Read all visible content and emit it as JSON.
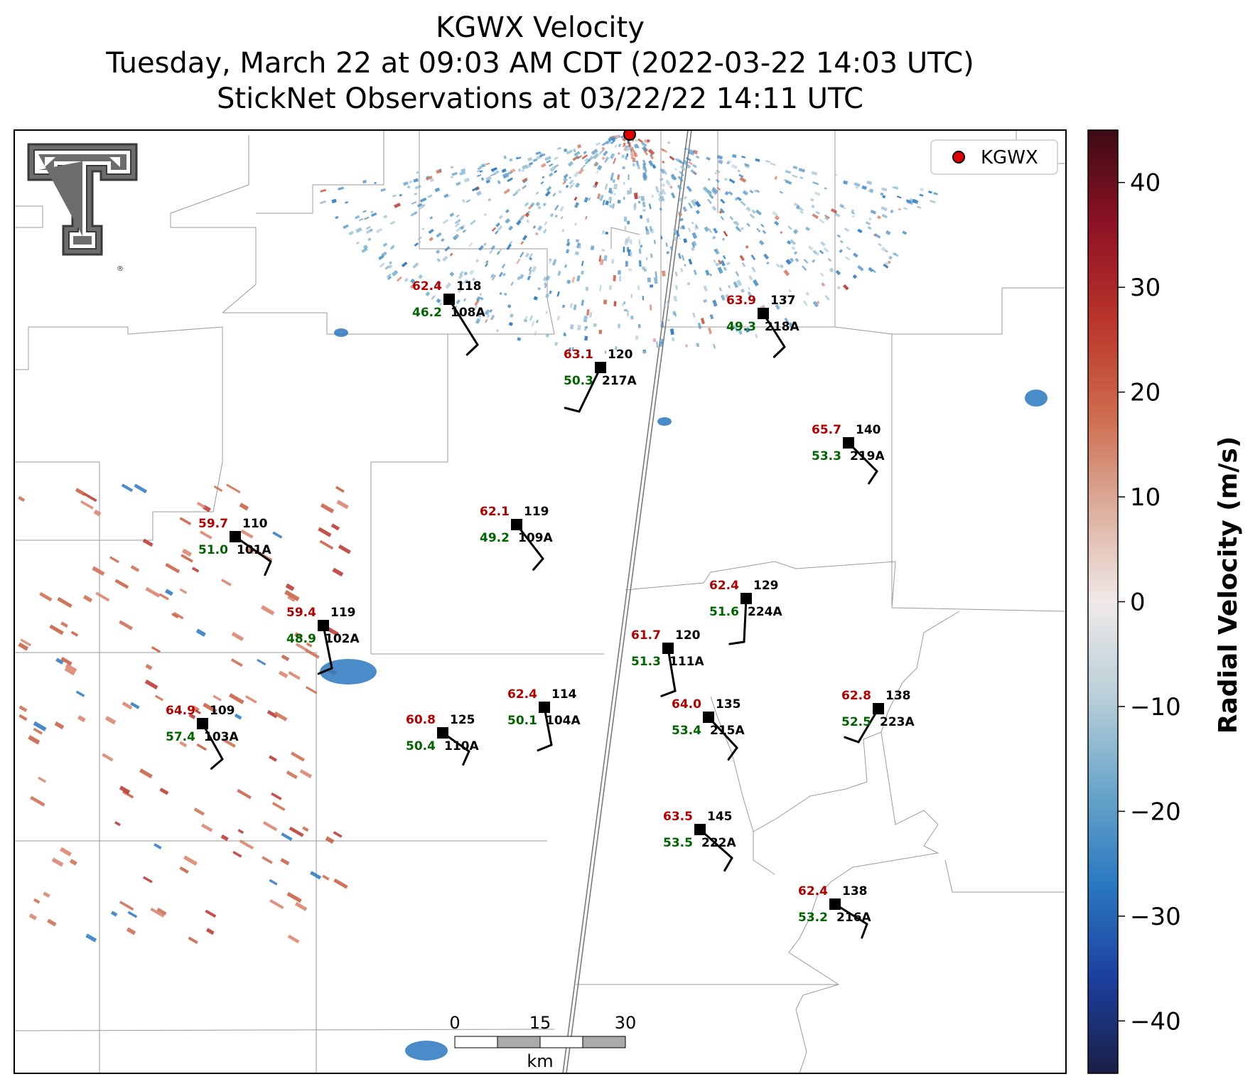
{
  "title": {
    "line1": "KGWX Velocity",
    "line2": "Tuesday, March 22 at 09:03 AM CDT (2022-03-22 14:03 UTC)",
    "line3": "StickNet Observations at 03/22/22 14:11 UTC"
  },
  "legend": {
    "label": "KGWX",
    "marker_color": "#e00000"
  },
  "colorbar": {
    "label": "Radial Velocity (m/s)",
    "ticks": [
      "40",
      "30",
      "20",
      "10",
      "0",
      "−10",
      "−20",
      "−30",
      "−40"
    ],
    "range": [
      -45,
      45
    ],
    "colors": [
      "#1b1f45",
      "#1c3f9e",
      "#2a78c0",
      "#6aa6c9",
      "#b9cfd8",
      "#efe9e8",
      "#dcae9c",
      "#cd6a4c",
      "#b8342a",
      "#8e1225",
      "#3c0b14"
    ]
  },
  "scale_bar": {
    "ticks": [
      "0",
      "15",
      "30"
    ],
    "unit": "km"
  },
  "stations": [
    {
      "id": "108A",
      "temp": "62.4",
      "dew": "46.2",
      "pres": "118"
    },
    {
      "id": "218A",
      "temp": "63.9",
      "dew": "49.3",
      "pres": "137"
    },
    {
      "id": "217A",
      "temp": "63.1",
      "dew": "50.3",
      "pres": "120"
    },
    {
      "id": "219A",
      "temp": "65.7",
      "dew": "53.3",
      "pres": "140"
    },
    {
      "id": "109A",
      "temp": "62.1",
      "dew": "49.2",
      "pres": "119"
    },
    {
      "id": "101A",
      "temp": "59.7",
      "dew": "51.0",
      "pres": "110"
    },
    {
      "id": "224A",
      "temp": "62.4",
      "dew": "51.6",
      "pres": "129"
    },
    {
      "id": "102A",
      "temp": "59.4",
      "dew": "48.9",
      "pres": "119"
    },
    {
      "id": "111A",
      "temp": "61.7",
      "dew": "51.3",
      "pres": "120"
    },
    {
      "id": "103A",
      "temp": "64.9",
      "dew": "57.4",
      "pres": "109"
    },
    {
      "id": "104A",
      "temp": "62.4",
      "dew": "50.1",
      "pres": "114"
    },
    {
      "id": "110A",
      "temp": "60.8",
      "dew": "50.4",
      "pres": "125"
    },
    {
      "id": "215A",
      "temp": "64.0",
      "dew": "53.4",
      "pres": "135"
    },
    {
      "id": "223A",
      "temp": "62.8",
      "dew": "52.5",
      "pres": "138"
    },
    {
      "id": "222A",
      "temp": "63.5",
      "dew": "53.5",
      "pres": "145"
    },
    {
      "id": "216A",
      "temp": "62.4",
      "dew": "53.2",
      "pres": "138"
    }
  ]
}
